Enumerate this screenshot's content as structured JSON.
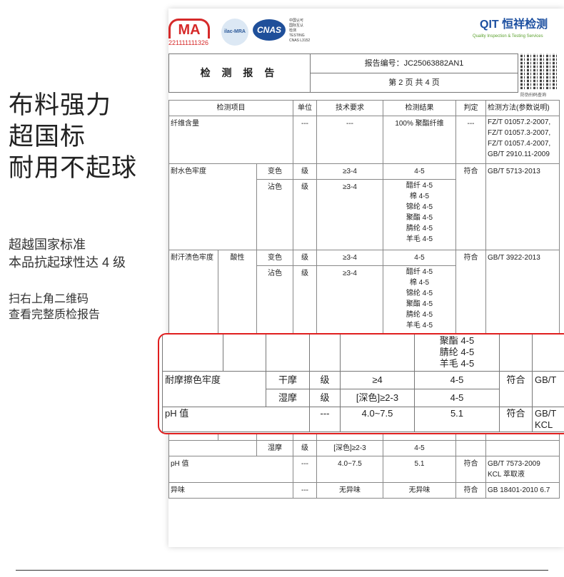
{
  "promo": {
    "headline": [
      "布料强力",
      "超国标",
      "耐用不起球"
    ],
    "sub1": [
      "超越国家标准",
      "本品抗起球性达 4 级"
    ],
    "sub2": [
      "扫右上角二维码",
      "查看完整质检报告"
    ]
  },
  "logos": {
    "cma": "MA",
    "cma_number": "221111111326",
    "ilac": "ilac-MRA",
    "cnas": "CNAS",
    "cnas_text": [
      "中国认可",
      "国际互认",
      "检测",
      "TESTING",
      "CNAS L3152"
    ],
    "qit": "QIT 恒祥检测",
    "qit_sub": "Quality Inspection & Testing Services",
    "qr_caption": "防伪扫码查询"
  },
  "report": {
    "title": "检 测 报 告",
    "number": "报告编号：JC25063882AN1",
    "page": "第 2 页 共 4 页"
  },
  "table": {
    "headers": [
      "检测项目",
      "单位",
      "技术要求",
      "检测结果",
      "判定",
      "检测方法(参数说明)"
    ],
    "fiber": {
      "item": "纤维含量",
      "unit": "---",
      "req": "---",
      "result": "100% 聚酯纤维",
      "verdict": "---",
      "method": [
        "FZ/T 01057.2-2007,",
        "FZ/T 01057.3-2007,",
        "FZ/T 01057.4-2007,",
        "GB/T 2910.11-2009"
      ]
    },
    "water": {
      "item": "耐水色牢度",
      "change": "变色",
      "stain": "沾色",
      "unit": "级",
      "req": "≥3-4",
      "change_result": "4-5",
      "stain_results": [
        "醋纤 4-5",
        "棉 4-5",
        "锦纶 4-5",
        "聚酯 4-5",
        "腈纶 4-5",
        "羊毛 4-5"
      ],
      "verdict": "符合",
      "method": "GB/T 5713-2013"
    },
    "sweat": {
      "item": "耐汗渍色牢度",
      "sub": "酸性",
      "change": "变色",
      "stain": "沾色",
      "unit": "级",
      "req": "≥3-4",
      "change_result": "4-5",
      "stain_results": [
        "醋纤 4-5",
        "棉 4-5",
        "锦纶 4-5",
        "聚酯 4-5",
        "腈纶 4-5",
        "羊毛 4-5"
      ],
      "verdict": "符合",
      "method": "GB/T 3922-2013"
    },
    "wet": {
      "label": "湿摩",
      "unit": "级",
      "req": "[深色]≥2-3",
      "result": "4-5"
    },
    "ph": {
      "item": "pH 值",
      "unit": "---",
      "req": "4.0~7.5",
      "result": "5.1",
      "verdict": "符合",
      "method": [
        "GB/T 7573-2009",
        "KCL 萃取液"
      ]
    },
    "odor": {
      "item": "异味",
      "unit": "---",
      "req": "无异味",
      "result": "无异味",
      "verdict": "符合",
      "method": "GB 18401-2010 6.7"
    }
  },
  "magnified": {
    "tail_results": [
      "聚酯 4-5",
      "腈纶 4-5",
      "羊毛 4-5"
    ],
    "rub": {
      "item": "耐摩擦色牢度",
      "dry": "干摩",
      "wet": "湿摩",
      "unit": "级",
      "dry_req": "≥4",
      "wet_req": "[深色]≥2-3",
      "dry_result": "4-5",
      "wet_result": "4-5",
      "verdict": "符合",
      "method": "GB/T"
    },
    "ph": {
      "item": "pH 值",
      "unit": "---",
      "req": "4.0~7.5",
      "result": "5.1",
      "verdict": "符合",
      "method": [
        "GB/T",
        "KCL"
      ]
    },
    "highlight_color": "#e01e1e"
  }
}
